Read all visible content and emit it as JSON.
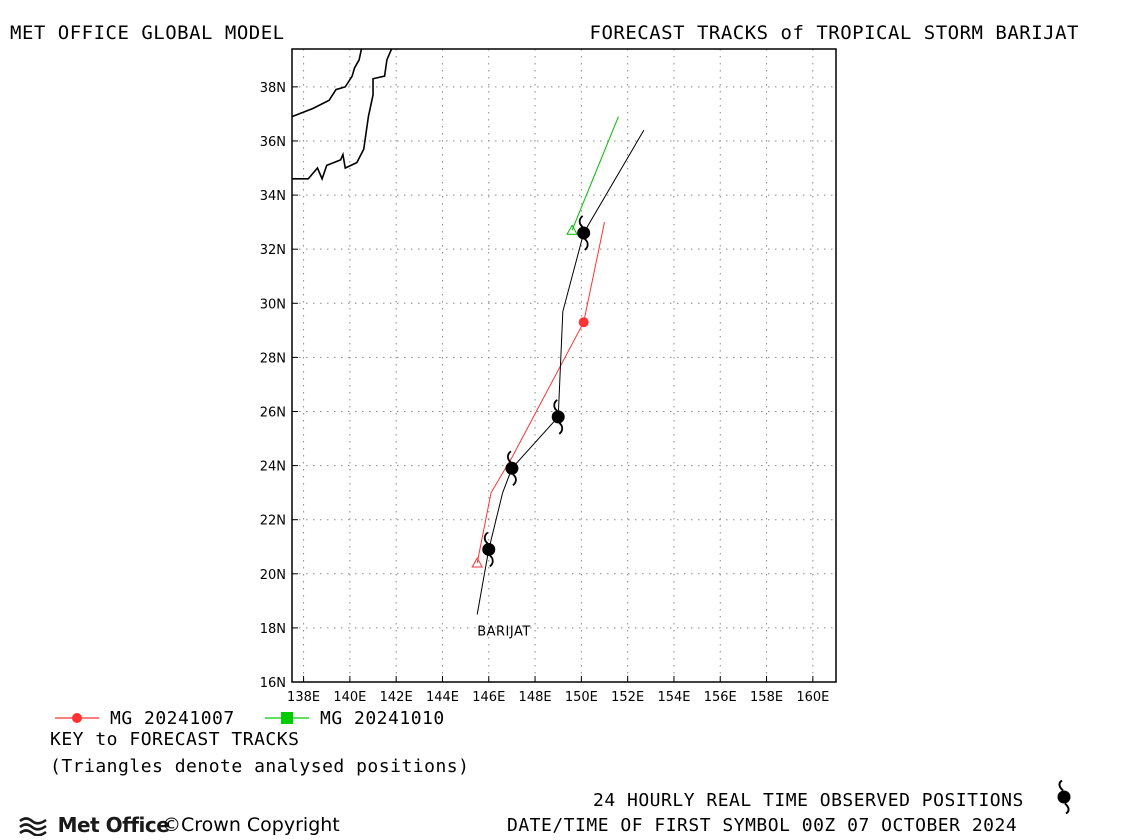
{
  "header": {
    "left_title": "MET OFFICE GLOBAL MODEL",
    "right_title": "FORECAST TRACKS of TROPICAL STORM BARIJAT"
  },
  "map": {
    "lon_range": [
      137.5,
      161
    ],
    "lat_range": [
      16,
      39.4
    ],
    "lon_ticks": [
      138,
      140,
      142,
      144,
      146,
      148,
      150,
      152,
      154,
      156,
      158,
      160
    ],
    "lat_ticks": [
      16,
      18,
      20,
      22,
      24,
      26,
      28,
      30,
      32,
      34,
      36,
      38
    ],
    "lon_tick_labels": [
      "138E",
      "140E",
      "142E",
      "144E",
      "146E",
      "148E",
      "150E",
      "152E",
      "154E",
      "156E",
      "158E",
      "160E"
    ],
    "lat_tick_labels": [
      "16N",
      "18N",
      "20N",
      "22N",
      "24N",
      "26N",
      "28N",
      "30N",
      "32N",
      "34N",
      "36N",
      "38N"
    ],
    "grid": "dotted",
    "storm_label": "BARIJAT",
    "storm_label_position": {
      "lon": 145.5,
      "lat": 17.9
    },
    "coastlines": [
      [
        [
          137.5,
          36.9
        ],
        [
          138.4,
          37.2
        ],
        [
          139.1,
          37.5
        ],
        [
          139.4,
          37.9
        ],
        [
          139.8,
          38.0
        ],
        [
          140.1,
          38.4
        ],
        [
          140.2,
          38.7
        ],
        [
          140.4,
          39.0
        ],
        [
          140.5,
          39.4
        ]
      ],
      [
        [
          137.5,
          34.6
        ],
        [
          138.2,
          34.6
        ],
        [
          138.6,
          35.0
        ],
        [
          138.8,
          34.6
        ],
        [
          139.0,
          35.1
        ],
        [
          139.6,
          35.3
        ],
        [
          139.7,
          35.5
        ],
        [
          139.8,
          35.0
        ],
        [
          140.3,
          35.2
        ],
        [
          140.6,
          35.7
        ],
        [
          140.7,
          36.3
        ],
        [
          140.8,
          36.9
        ],
        [
          140.9,
          37.3
        ],
        [
          141.0,
          37.7
        ],
        [
          141.0,
          38.3
        ],
        [
          141.5,
          38.4
        ],
        [
          141.6,
          39.0
        ],
        [
          141.8,
          39.4
        ]
      ]
    ],
    "observed_track": [
      {
        "lon": 145.5,
        "lat": 18.5
      },
      {
        "lon": 146.0,
        "lat": 20.9
      },
      {
        "lon": 146.2,
        "lat": 21.6
      },
      {
        "lon": 146.6,
        "lat": 23.0
      },
      {
        "lon": 147.0,
        "lat": 23.9
      },
      {
        "lon": 149.0,
        "lat": 25.8
      },
      {
        "lon": 149.2,
        "lat": 29.7
      },
      {
        "lon": 150.1,
        "lat": 32.6
      },
      {
        "lon": 152.7,
        "lat": 36.4
      }
    ],
    "observed_symbols": [
      {
        "lon": 146.0,
        "lat": 20.9
      },
      {
        "lon": 147.0,
        "lat": 23.9
      },
      {
        "lon": 149.0,
        "lat": 25.8
      },
      {
        "lon": 150.1,
        "lat": 32.6
      }
    ],
    "forecast_tracks": [
      {
        "name": "MG 20241007",
        "color": "#ff3333",
        "marker": "circle",
        "points": [
          {
            "lon": 145.5,
            "lat": 20.4
          },
          {
            "lon": 146.1,
            "lat": 23.0
          },
          {
            "lon": 147.0,
            "lat": 24.3
          },
          {
            "lon": 150.1,
            "lat": 29.3
          },
          {
            "lon": 151.0,
            "lat": 33.0
          }
        ],
        "analysed_index": 0,
        "marker_points": [
          {
            "lon": 150.1,
            "lat": 29.3
          }
        ]
      },
      {
        "name": "MG 20241010",
        "color": "#00bb00",
        "marker": "square",
        "points": [
          {
            "lon": 149.6,
            "lat": 32.7
          },
          {
            "lon": 151.6,
            "lat": 36.9
          }
        ],
        "analysed_index": 0,
        "marker_points": []
      }
    ]
  },
  "legend": {
    "entries": [
      {
        "label": "MG 20241007",
        "color": "#ff3333",
        "marker": "circle"
      },
      {
        "label": "MG 20241010",
        "color": "#00cc00",
        "marker": "square"
      }
    ],
    "key_title": "KEY to FORECAST TRACKS",
    "key_note": "(Triangles denote analysed positions)"
  },
  "footer": {
    "logo_text": "Met Office",
    "copyright": "©Crown Copyright",
    "observed_caption": "24 HOURLY REAL TIME OBSERVED POSITIONS",
    "datetime_caption": "DATE/TIME OF FIRST SYMBOL 00Z 07 OCTOBER 2024"
  }
}
